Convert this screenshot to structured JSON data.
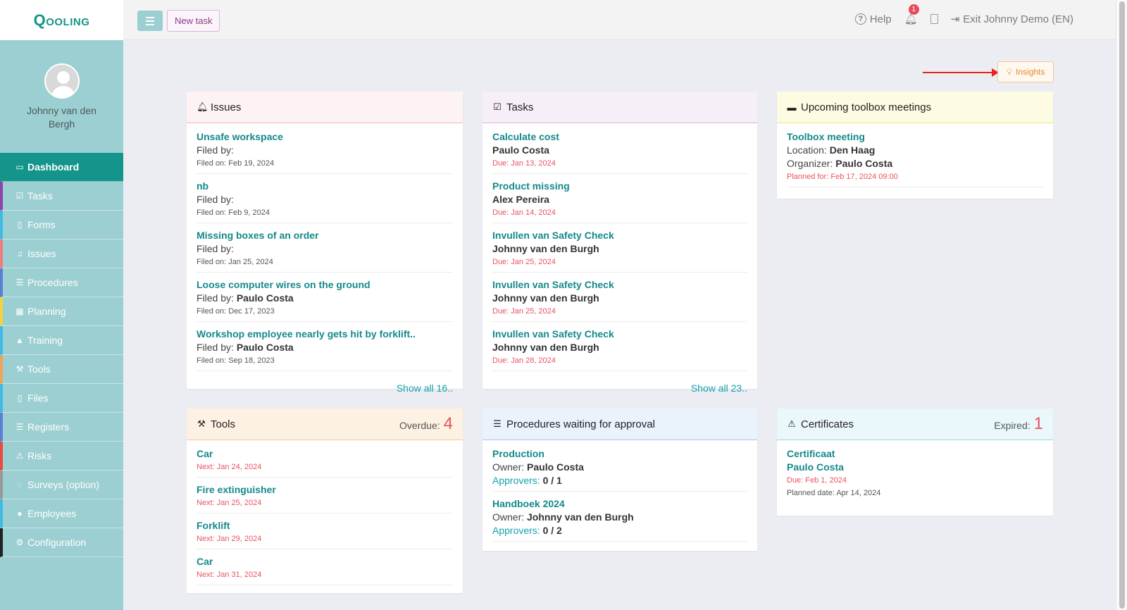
{
  "sidebar": {
    "logo": "Qooling",
    "user_name": "Johnny van den Bergh",
    "items": [
      {
        "label": "Dashboard",
        "icon": "monitor-icon",
        "color": "#14948a"
      },
      {
        "label": "Tasks",
        "icon": "check-square-icon",
        "color": "#8e44ad"
      },
      {
        "label": "Forms",
        "icon": "file-icon",
        "color": "#3fb9e6"
      },
      {
        "label": "Issues",
        "icon": "bell-icon",
        "color": "#f07c7c"
      },
      {
        "label": "Procedures",
        "icon": "list-icon",
        "color": "#5b7fd6"
      },
      {
        "label": "Planning",
        "icon": "calendar-icon",
        "color": "#f3d33b"
      },
      {
        "label": "Training",
        "icon": "graduation-cap-icon",
        "color": "#3fb9e6"
      },
      {
        "label": "Tools",
        "icon": "wrench-icon",
        "color": "#f0a35a"
      },
      {
        "label": "Files",
        "icon": "pdf-file-icon",
        "color": "#3fb9e6"
      },
      {
        "label": "Registers",
        "icon": "list-icon",
        "color": "#5b7fd6"
      },
      {
        "label": "Risks",
        "icon": "warning-icon",
        "color": "#e74c3c"
      },
      {
        "label": "Surveys (option)",
        "icon": "chat-icon",
        "color": "#999999"
      },
      {
        "label": "Employees",
        "icon": "users-icon",
        "color": "#3fb9e6"
      },
      {
        "label": "Configuration",
        "icon": "gear-icon",
        "color": "#222222"
      }
    ]
  },
  "header": {
    "new_task": "New task",
    "help": "Help",
    "notification_count": "1",
    "exit": "Exit Johnny Demo (EN)"
  },
  "insights": "Insights",
  "issues": {
    "title": "Issues",
    "items": [
      {
        "title": "Unsafe workspace",
        "filed_by_label": "Filed by:",
        "filed_by": "",
        "filed_on": "Filed on: Feb 19, 2024"
      },
      {
        "title": "nb",
        "filed_by_label": "Filed by:",
        "filed_by": "",
        "filed_on": "Filed on: Feb 9, 2024"
      },
      {
        "title": "Missing boxes of an order",
        "filed_by_label": "Filed by:",
        "filed_by": "",
        "filed_on": "Filed on: Jan 25, 2024"
      },
      {
        "title": "Loose computer wires on the ground",
        "filed_by_label": "Filed by:",
        "filed_by": "Paulo Costa",
        "filed_on": "Filed on: Dec 17, 2023"
      },
      {
        "title": "Workshop employee nearly gets hit by forklift..",
        "filed_by_label": "Filed by:",
        "filed_by": "Paulo Costa",
        "filed_on": "Filed on: Sep 18, 2023"
      }
    ],
    "show_all": "Show all 16.."
  },
  "tasks": {
    "title": "Tasks",
    "items": [
      {
        "title": "Calculate cost",
        "person": "Paulo Costa",
        "due": "Due: Jan 13, 2024"
      },
      {
        "title": "Product missing",
        "person": "Alex Pereira",
        "due": "Due: Jan 14, 2024"
      },
      {
        "title": "Invullen van Safety Check",
        "person": "Johnny van den Burgh",
        "due": "Due: Jan 25, 2024"
      },
      {
        "title": "Invullen van Safety Check",
        "person": "Johnny van den Burgh",
        "due": "Due: Jan 25, 2024"
      },
      {
        "title": "Invullen van Safety Check",
        "person": "Johnny van den Burgh",
        "due": "Due: Jan 28, 2024"
      }
    ],
    "show_all": "Show all 23.."
  },
  "toolbox": {
    "title": "Upcoming toolbox meetings",
    "items": [
      {
        "title": "Toolbox meeting",
        "location_label": "Location:",
        "location": "Den Haag",
        "organizer_label": "Organizer:",
        "organizer": "Paulo Costa",
        "planned": "Planned for: Feb 17, 2024 09:00"
      }
    ]
  },
  "tools": {
    "title": "Tools",
    "overdue_label": "Overdue:",
    "overdue_count": "4",
    "items": [
      {
        "title": "Car",
        "next": "Next: Jan 24, 2024"
      },
      {
        "title": "Fire extinguisher",
        "next": "Next: Jan 25, 2024"
      },
      {
        "title": "Forklift",
        "next": "Next: Jan 29, 2024"
      },
      {
        "title": "Car",
        "next": "Next: Jan 31, 2024"
      }
    ]
  },
  "procedures": {
    "title": "Procedures waiting for approval",
    "items": [
      {
        "title": "Production",
        "owner_label": "Owner:",
        "owner": "Paulo Costa",
        "approvers_label": "Approvers:",
        "approvers": "0 / 1"
      },
      {
        "title": "Handboek 2024",
        "owner_label": "Owner:",
        "owner": "Johnny van den Burgh",
        "approvers_label": "Approvers:",
        "approvers": "0 / 2"
      }
    ]
  },
  "certificates": {
    "title": "Certificates",
    "expired_label": "Expired:",
    "expired_count": "1",
    "items": [
      {
        "title": "Certificaat",
        "person": "Paulo Costa",
        "due": "Due: Feb 1, 2024",
        "planned": "Planned date: Apr 14, 2024"
      }
    ]
  },
  "colors": {
    "teal": "#14948a",
    "sidebar": "#9ccfd1",
    "issues_head": "#fdf3f2",
    "tasks_head": "#f6eff8",
    "toolbox_head": "#fdfbe2",
    "tools_head": "#fdf1e4",
    "procedures_head": "#eaf2fb",
    "certificates_head": "#eaf8fb"
  }
}
